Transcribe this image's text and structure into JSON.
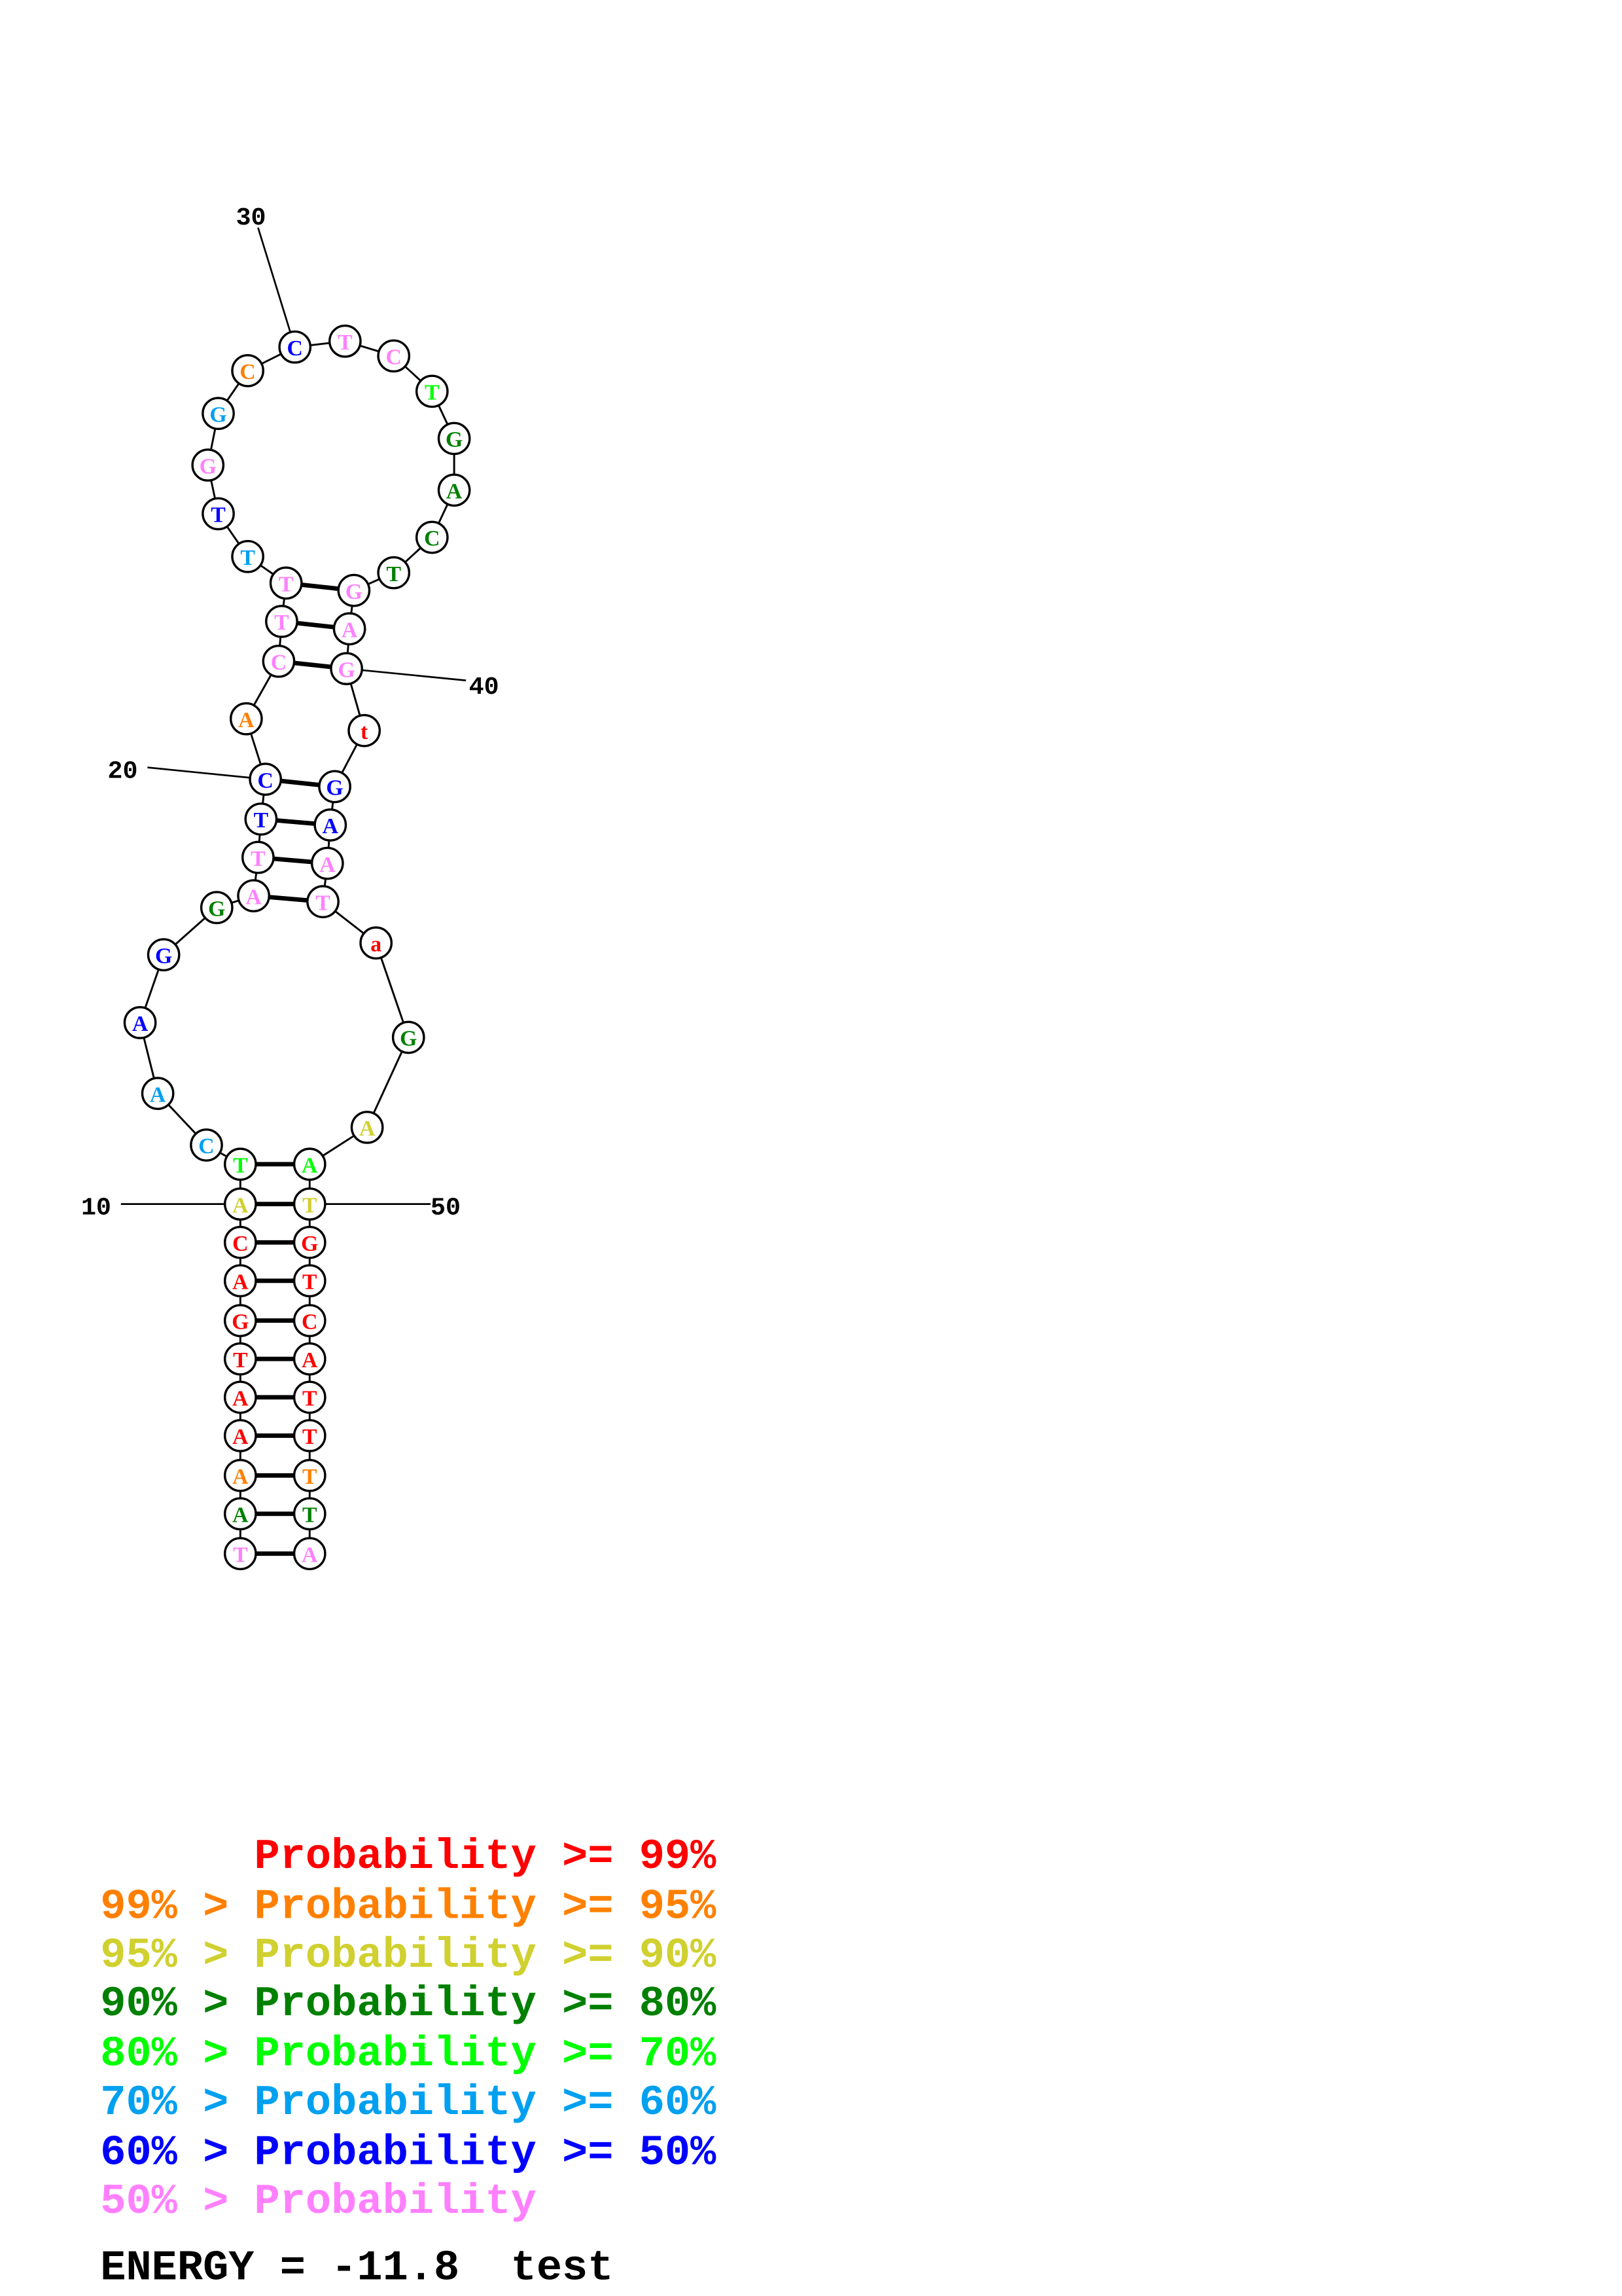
{
  "structure": {
    "sequence": "TAAAATGACATCAAGGATTCACTTTTGGCCTCTGACTGAGtGAATaGAATGTCATTTTA",
    "probability_class": [
      7,
      3,
      1,
      0,
      0,
      0,
      0,
      0,
      0,
      2,
      4,
      5,
      5,
      6,
      6,
      3,
      7,
      7,
      6,
      6,
      1,
      7,
      7,
      7,
      5,
      6,
      7,
      5,
      1,
      6,
      7,
      7,
      4,
      3,
      3,
      3,
      3,
      7,
      7,
      7,
      0,
      6,
      6,
      7,
      7,
      0,
      3,
      2,
      4,
      2,
      0,
      0,
      0,
      0,
      0,
      0,
      1,
      3,
      7
    ],
    "pairs": [
      [
        1,
        59
      ],
      [
        2,
        58
      ],
      [
        3,
        57
      ],
      [
        4,
        56
      ],
      [
        5,
        55
      ],
      [
        6,
        54
      ],
      [
        7,
        53
      ],
      [
        8,
        52
      ],
      [
        9,
        51
      ],
      [
        10,
        50
      ],
      [
        11,
        49
      ],
      [
        17,
        45
      ],
      [
        18,
        44
      ],
      [
        19,
        43
      ],
      [
        20,
        42
      ],
      [
        22,
        40
      ],
      [
        23,
        39
      ],
      [
        24,
        38
      ]
    ],
    "position_labels": [
      {
        "position": 10,
        "text": "10"
      },
      {
        "position": 20,
        "text": "20"
      },
      {
        "position": 30,
        "text": "30"
      },
      {
        "position": 40,
        "text": "40"
      },
      {
        "position": 50,
        "text": "50"
      }
    ]
  },
  "legend": {
    "colors": [
      "#ff0000",
      "#ff8000",
      "#d0d030",
      "#008000",
      "#00ff00",
      "#00a0f0",
      "#0000ff",
      "#ff80ff"
    ],
    "lines": [
      "      Probability >= 99%",
      "99% > Probability >= 95%",
      "95% > Probability >= 90%",
      "90% > Probability >= 80%",
      "80% > Probability >= 70%",
      "70% > Probability >= 60%",
      "60% > Probability >= 50%",
      "50% > Probability"
    ]
  },
  "energy": "ENERGY = -11.8  test"
}
